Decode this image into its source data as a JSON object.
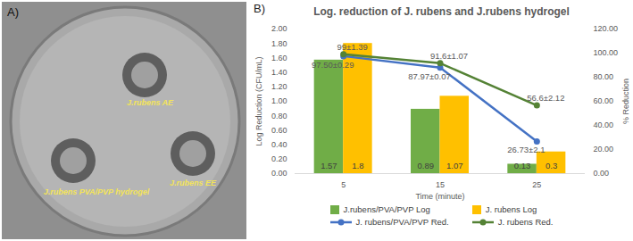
{
  "panel_a": {
    "label": "A)",
    "labels": [
      "J.rubens AE",
      "J.rubens PVA/PVP hydrogel",
      "J.rubens EE"
    ]
  },
  "chart_data": {
    "type": "bar",
    "panel_label": "B)",
    "title": "Log. reduction of J. rubens and J.rubens hydrogel",
    "x_label": "Time (minute)",
    "y_label": "Log Reduction (CFU/mL)",
    "y2_label": "% Reduction",
    "categories": [
      "5",
      "15",
      "25"
    ],
    "ylim": [
      0,
      2
    ],
    "yticks": [
      {
        "value": 0,
        "label": "0.00"
      },
      {
        "value": 0.2,
        "label": "0.20"
      },
      {
        "value": 0.4,
        "label": "0.40"
      },
      {
        "value": 0.6,
        "label": "0.60"
      },
      {
        "value": 0.8,
        "label": "0.80"
      },
      {
        "value": 1,
        "label": "1.00"
      },
      {
        "value": 1.2,
        "label": "1.20"
      },
      {
        "value": 1.4,
        "label": "1.40"
      },
      {
        "value": 1.6,
        "label": "1.60"
      },
      {
        "value": 1.8,
        "label": "1.80"
      },
      {
        "value": 2,
        "label": "2.00"
      }
    ],
    "y2lim": [
      0,
      120
    ],
    "y2ticks": [
      {
        "value": 0,
        "label": "0.00"
      },
      {
        "value": 20,
        "label": "20.00"
      },
      {
        "value": 40,
        "label": "40.00"
      },
      {
        "value": 60,
        "label": "60.00"
      },
      {
        "value": 80,
        "label": "80.00"
      },
      {
        "value": 100,
        "label": "100.00"
      },
      {
        "value": 120,
        "label": "120.00"
      }
    ],
    "grid": false,
    "legend": "bottom",
    "data_labels": true,
    "series": [
      {
        "name": "J.rubens/PVA/PVP Log",
        "type": "bar",
        "color": "#70ad47",
        "values": [
          1.57,
          0.89,
          0.13
        ]
      },
      {
        "name": "J. rubens Log",
        "type": "bar",
        "color": "#ffc000",
        "values": [
          1.8,
          1.07,
          0.3
        ]
      },
      {
        "name": "J. rubens/PVA/PVP Red.",
        "type": "line",
        "axis": "y2",
        "color": "#4472c4",
        "marker": "circle",
        "values": [
          97.5,
          87.97,
          26.73
        ],
        "value_labels": [
          "97.50±0.29",
          "87.97±0.07",
          "26.73±2.1"
        ]
      },
      {
        "name": "J. rubens Red.",
        "type": "line",
        "axis": "y2",
        "color": "#548235",
        "marker": "circle",
        "values": [
          99,
          91.6,
          56.6
        ],
        "value_labels": [
          "99±1.39",
          "91.6±1.07",
          "56.6±2.12"
        ]
      }
    ]
  }
}
